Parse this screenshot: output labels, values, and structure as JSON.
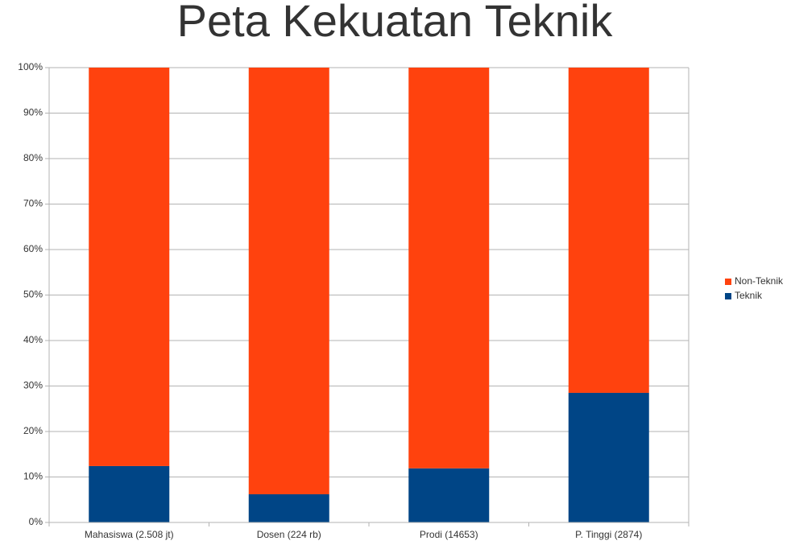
{
  "chart_data": {
    "type": "stacked-bar",
    "title": "Peta Kekuatan Teknik",
    "categories": [
      "Mahasiswa (2.508 jt)",
      "Dosen (224 rb)",
      "Prodi (14653)",
      "P. Tinggi (2874)"
    ],
    "series": [
      {
        "name": "Teknik",
        "color": "#004586",
        "values": [
          12.4,
          6.2,
          11.9,
          28.5
        ]
      },
      {
        "name": "Non-Teknik",
        "color": "#ff420e",
        "values": [
          87.6,
          93.8,
          88.1,
          71.5
        ]
      }
    ],
    "ylim": [
      0,
      100
    ],
    "yticks": [
      {
        "value": 0,
        "label": "0%"
      },
      {
        "value": 10,
        "label": "10%"
      },
      {
        "value": 20,
        "label": "20%"
      },
      {
        "value": 30,
        "label": "30%"
      },
      {
        "value": 40,
        "label": "40%"
      },
      {
        "value": 50,
        "label": "50%"
      },
      {
        "value": 60,
        "label": "60%"
      },
      {
        "value": 70,
        "label": "70%"
      },
      {
        "value": 80,
        "label": "80%"
      },
      {
        "value": 90,
        "label": "90%"
      },
      {
        "value": 100,
        "label": "100%"
      }
    ],
    "grid": true,
    "legend": "right"
  }
}
